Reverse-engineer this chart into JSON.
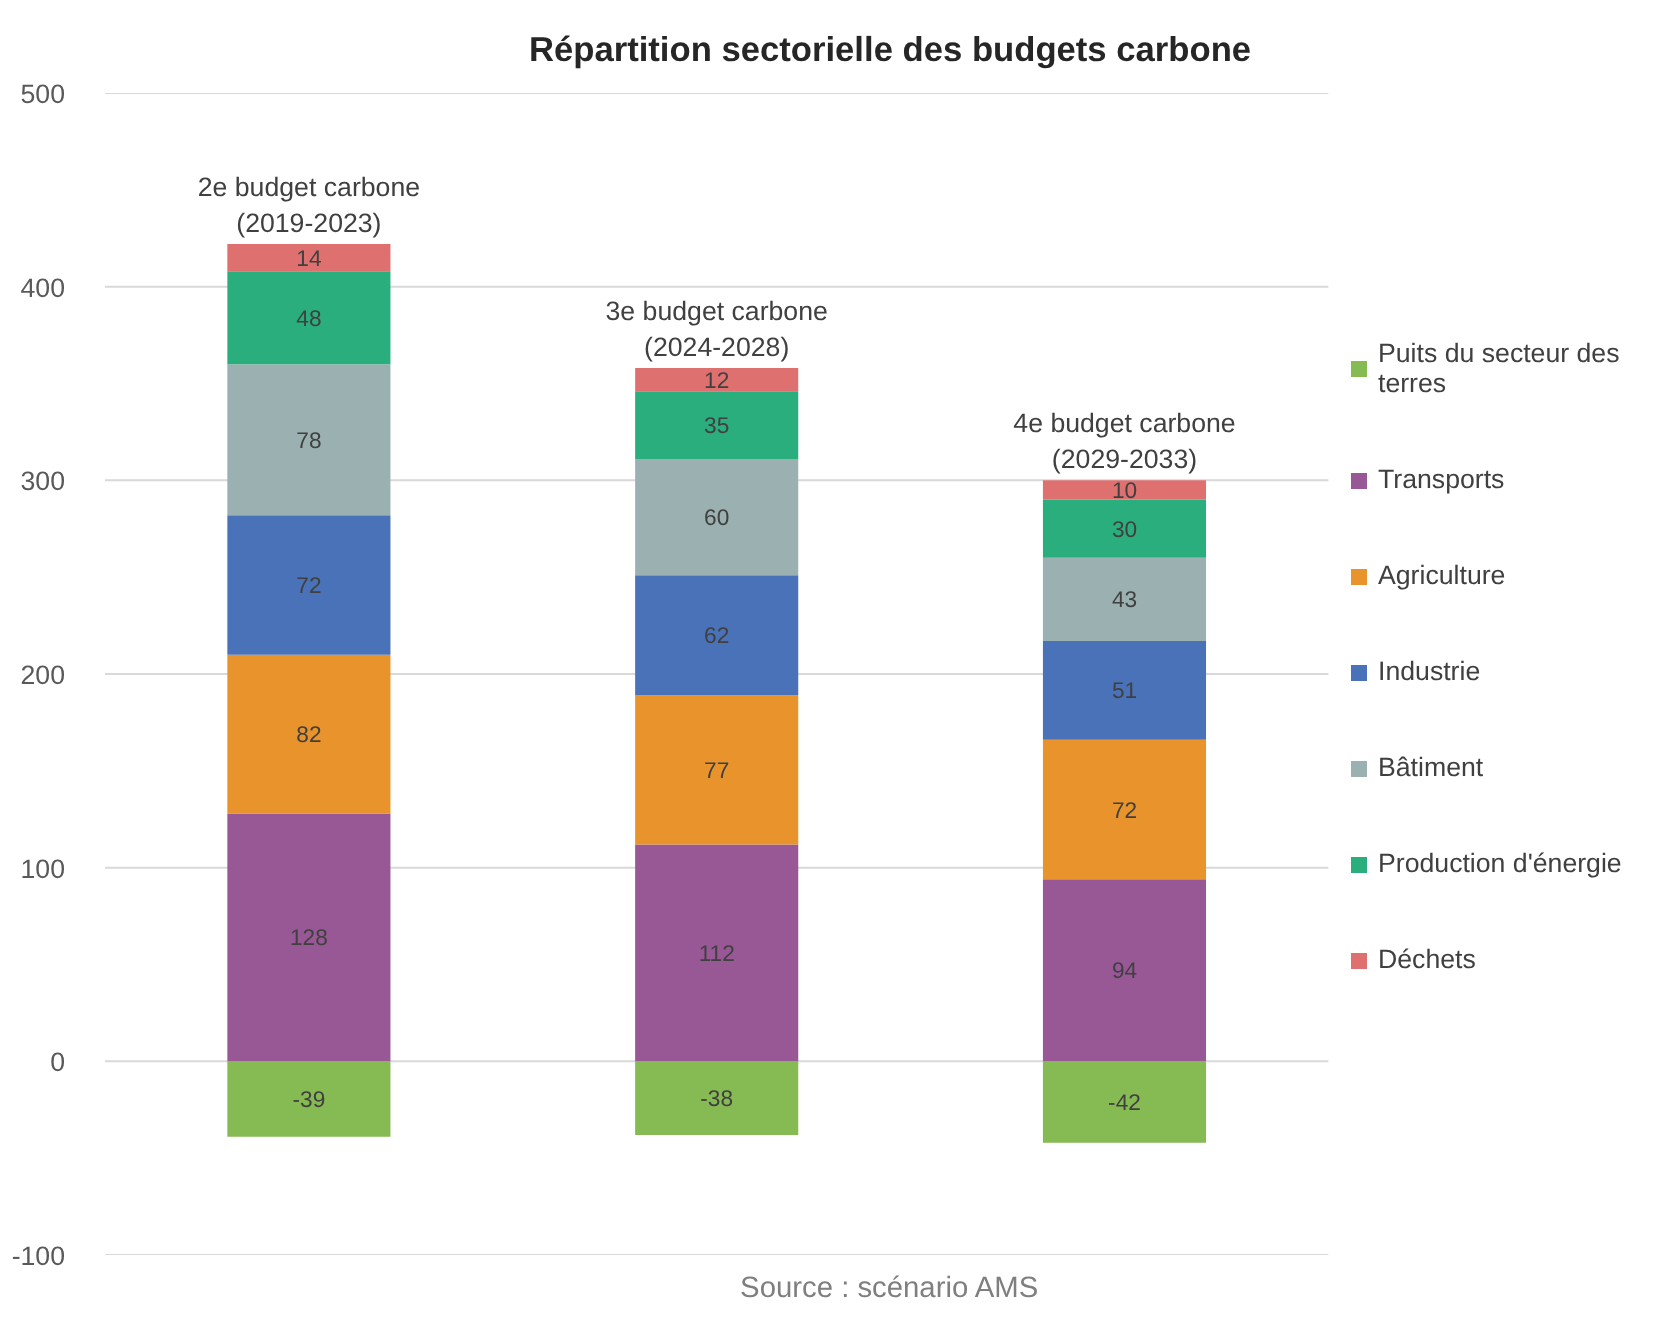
{
  "chart_data": {
    "type": "bar",
    "title": "Répartition sectorielle des budgets carbone",
    "categories": [
      "2e budget carbone\n(2019-2023)",
      "3e budget carbone\n(2024-2028)",
      "4e budget carbone\n(2029-2033)"
    ],
    "stacked": true,
    "series": [
      {
        "name": "Puits du secteur des terres",
        "color": "#86ba52",
        "values": [
          -39,
          -38,
          -42
        ]
      },
      {
        "name": "Transports",
        "color": "#985896",
        "values": [
          128,
          112,
          94
        ]
      },
      {
        "name": "Agriculture",
        "color": "#e8932b",
        "values": [
          82,
          77,
          72
        ]
      },
      {
        "name": "Industrie",
        "color": "#4a72b9",
        "values": [
          72,
          62,
          51
        ]
      },
      {
        "name": "Bâtiment",
        "color": "#9bb0b0",
        "values": [
          78,
          60,
          43
        ]
      },
      {
        "name": "Production d'énergie",
        "color": "#2aae7e",
        "values": [
          48,
          35,
          30
        ]
      },
      {
        "name": "Déchets",
        "color": "#df7070",
        "values": [
          14,
          12,
          10
        ]
      }
    ],
    "ylim": [
      -100,
      500
    ],
    "yticks": [
      -100,
      0,
      100,
      200,
      300,
      400,
      500
    ],
    "grid": "y",
    "legend": "right",
    "data_labels": true,
    "annotations": [
      "Source : scénario AMS"
    ]
  }
}
